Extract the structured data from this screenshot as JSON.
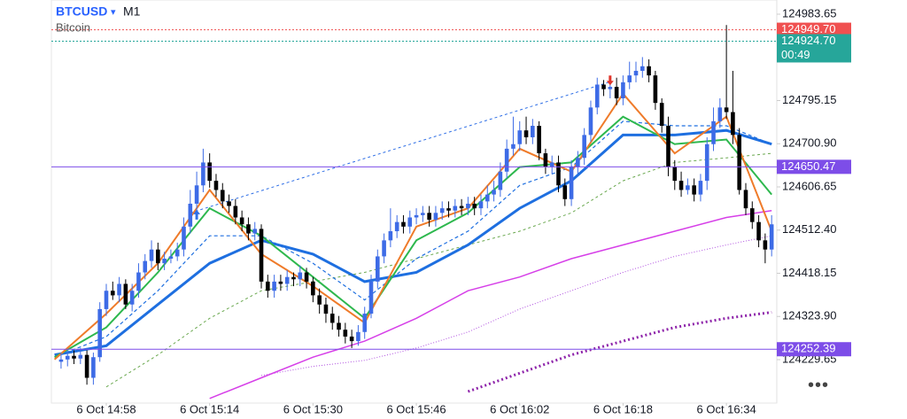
{
  "chart_data": {
    "type": "candlestick",
    "symbol": "BTCUSD",
    "timeframe": "M1",
    "description": "Bitcoin",
    "up_color": "#3d6be6",
    "down_color": "#000000",
    "xlim": [
      -8.5,
      103.8
    ],
    "ylim": [
      124134.9,
      125014.6
    ],
    "xticks": [
      {
        "value": 0,
        "label": "6 Oct 14:58"
      },
      {
        "value": 16,
        "label": "6 Oct 15:14"
      },
      {
        "value": 32,
        "label": "6 Oct 15:30"
      },
      {
        "value": 48,
        "label": "6 Oct 15:46"
      },
      {
        "value": 64,
        "label": "6 Oct 16:02"
      },
      {
        "value": 80,
        "label": "6 Oct 16:18"
      },
      {
        "value": 96,
        "label": "6 Oct 16:34"
      }
    ],
    "yticks": [
      124983.65,
      124795.15,
      {
        "value": 124700.9,
        "label": "124700.90"
      },
      124606.65,
      {
        "value": 124512.4,
        "label": "124512.40"
      },
      124418.15,
      {
        "value": 124323.9,
        "label": "124323.90"
      },
      124229.65
    ],
    "candles": {
      "x": [
        -7,
        -6,
        -5,
        -4,
        -3,
        -2,
        -1,
        0,
        1,
        2,
        3,
        4,
        5,
        6,
        7,
        8,
        9,
        10,
        11,
        12,
        13,
        14,
        15,
        16,
        17,
        18,
        19,
        20,
        21,
        22,
        23,
        24,
        25,
        26,
        27,
        28,
        29,
        30,
        31,
        32,
        33,
        34,
        35,
        36,
        37,
        38,
        39,
        40,
        41,
        42,
        43,
        44,
        45,
        46,
        47,
        48,
        49,
        50,
        51,
        52,
        53,
        54,
        55,
        56,
        57,
        58,
        59,
        60,
        61,
        62,
        63,
        64,
        65,
        66,
        67,
        68,
        69,
        70,
        71,
        72,
        73,
        74,
        75,
        76,
        77,
        78,
        79,
        80,
        81,
        82,
        83,
        84,
        85,
        86,
        87,
        88,
        89,
        90,
        91,
        92,
        93,
        94,
        95,
        96,
        97,
        98,
        99,
        100,
        101,
        102,
        103
      ],
      "open": [
        124225,
        124230,
        124238,
        124232,
        124240,
        124190,
        124235,
        124340,
        124380,
        124370,
        124395,
        124350,
        124380,
        124420,
        124445,
        124470,
        124440,
        124450,
        124455,
        124470,
        124520,
        124570,
        124610,
        124660,
        124620,
        124600,
        124575,
        124565,
        124540,
        124525,
        124505,
        124515,
        124400,
        124380,
        124400,
        124395,
        124410,
        124405,
        124420,
        124400,
        124370,
        124350,
        124330,
        124310,
        124295,
        124280,
        124270,
        124290,
        124330,
        124400,
        124455,
        124490,
        124510,
        124530,
        124520,
        124540,
        124545,
        124550,
        124535,
        124550,
        124560,
        124555,
        124565,
        124560,
        124570,
        124560,
        124575,
        124590,
        124600,
        124640,
        124690,
        124700,
        124730,
        124715,
        124740,
        124680,
        124650,
        124660,
        124610,
        124580,
        124650,
        124670,
        124720,
        124780,
        124830,
        124820,
        124825,
        124800,
        124835,
        124850,
        124860,
        124870,
        124850,
        124790,
        124740,
        124650,
        124620,
        124600,
        124610,
        124590,
        124620,
        124700,
        124750,
        124780,
        124770,
        124720,
        124600,
        124560,
        124530,
        124490,
        124470
      ],
      "high": [
        124245,
        124250,
        124250,
        124255,
        124250,
        124245,
        124355,
        124395,
        124400,
        124410,
        124405,
        124395,
        124440,
        124460,
        124490,
        124485,
        124465,
        124470,
        124485,
        124540,
        124600,
        124640,
        124690,
        124680,
        124635,
        124615,
        124590,
        124580,
        124555,
        124540,
        124530,
        124525,
        124415,
        124415,
        124415,
        124425,
        124420,
        124435,
        124430,
        124410,
        124385,
        124365,
        124345,
        124325,
        124310,
        124295,
        124305,
        124345,
        124415,
        124470,
        124505,
        124560,
        124545,
        124545,
        124555,
        124560,
        124565,
        124565,
        124565,
        124575,
        124575,
        124580,
        124580,
        124585,
        124585,
        124590,
        124610,
        124620,
        124660,
        124710,
        124760,
        124750,
        124760,
        124755,
        124750,
        124690,
        124675,
        124675,
        124625,
        124665,
        124685,
        124735,
        124795,
        124845,
        124840,
        124840,
        124845,
        124850,
        124880,
        124880,
        124890,
        124885,
        124860,
        124800,
        124760,
        124665,
        124640,
        124625,
        124625,
        124635,
        124715,
        124780,
        124800,
        124960,
        124860,
        124735,
        124615,
        124575,
        124545,
        124505,
        124545
      ],
      "low": [
        124210,
        124215,
        124220,
        124220,
        124175,
        124175,
        124225,
        124325,
        124360,
        124355,
        124340,
        124335,
        124365,
        124405,
        124430,
        124425,
        124425,
        124440,
        124445,
        124455,
        124505,
        124555,
        124595,
        124605,
        124585,
        124560,
        124550,
        124525,
        124510,
        124490,
        124490,
        124385,
        124365,
        124365,
        124380,
        124380,
        124390,
        124390,
        124385,
        124355,
        124330,
        124310,
        124295,
        124280,
        124265,
        124255,
        124260,
        124275,
        124320,
        124385,
        124440,
        124475,
        124495,
        124505,
        124505,
        124525,
        124530,
        124520,
        124520,
        124535,
        124540,
        124540,
        124545,
        124545,
        124545,
        124545,
        124560,
        124575,
        124585,
        124625,
        124675,
        124685,
        124700,
        124700,
        124665,
        124635,
        124635,
        124595,
        124565,
        124565,
        124635,
        124655,
        124705,
        124765,
        124805,
        124800,
        124785,
        124785,
        124820,
        124835,
        124845,
        124835,
        124775,
        124725,
        124630,
        124600,
        124585,
        124590,
        124575,
        124575,
        124600,
        124685,
        124735,
        124755,
        124700,
        124590,
        124545,
        124515,
        124475,
        124440,
        124455
      ],
      "close": [
        124230,
        124238,
        124232,
        124240,
        124190,
        124235,
        124340,
        124380,
        124370,
        124395,
        124350,
        124380,
        124420,
        124445,
        124470,
        124440,
        124450,
        124455,
        124470,
        124520,
        124570,
        124610,
        124660,
        124620,
        124600,
        124575,
        124565,
        124540,
        124525,
        124505,
        124515,
        124400,
        124380,
        124400,
        124395,
        124410,
        124405,
        124420,
        124400,
        124370,
        124350,
        124330,
        124310,
        124295,
        124280,
        124270,
        124290,
        124330,
        124400,
        124455,
        124490,
        124510,
        124530,
        124520,
        124540,
        124545,
        124550,
        124535,
        124550,
        124560,
        124555,
        124565,
        124560,
        124570,
        124560,
        124575,
        124590,
        124600,
        124640,
        124690,
        124700,
        124730,
        124715,
        124740,
        124680,
        124650,
        124660,
        124610,
        124580,
        124650,
        124670,
        124720,
        124780,
        124830,
        124820,
        124825,
        124800,
        124835,
        124850,
        124860,
        124870,
        124850,
        124790,
        124740,
        124650,
        124620,
        124600,
        124610,
        124590,
        124620,
        124700,
        124750,
        124780,
        124770,
        124720,
        124600,
        124560,
        124530,
        124490,
        124470,
        124525
      ]
    },
    "line_x": [
      -8,
      0,
      8,
      16,
      24,
      32,
      40,
      48,
      56,
      64,
      72,
      80,
      88,
      96,
      103
    ],
    "lines": [
      {
        "color": "#8e24aa",
        "width": 3,
        "dash": "2 3",
        "values": [
          null,
          null,
          null,
          null,
          null,
          null,
          null,
          null,
          124160,
          124200,
          124240,
          124270,
          124300,
          124320,
          124333
        ]
      },
      {
        "color": "#b04fe0",
        "width": 1,
        "dash": "1 2",
        "values": [
          null,
          null,
          null,
          null,
          124195,
          124215,
          124228,
          124255,
          124290,
          124340,
          124380,
          124420,
          124455,
          124480,
          124500
        ]
      },
      {
        "color": "#d63fe8",
        "width": 1.5,
        "dash": "",
        "values": [
          null,
          null,
          null,
          124145,
          124190,
          124235,
          124270,
          124320,
          124380,
          124410,
          124450,
          124480,
          124510,
          124540,
          124555
        ]
      },
      {
        "color": "#6aa84f",
        "width": 1,
        "dash": "3 3",
        "values": [
          null,
          124170,
          124240,
          124320,
          124380,
          124400,
          124420,
          124450,
          124480,
          124510,
          124550,
          124620,
          124660,
          124670,
          124680
        ]
      },
      {
        "color": "#1e6fe0",
        "width": 1.2,
        "dash": "4 3",
        "values": [
          124235,
          124280,
          124380,
          124500,
          124500,
          124440,
          124360,
          124450,
          124510,
          124610,
          124650,
          124750,
          124740,
          124740,
          124700
        ]
      },
      {
        "color": "#1e6fe0",
        "width": 3,
        "dash": "",
        "values": [
          124240,
          124260,
          124350,
          124440,
          124490,
          124460,
          124400,
          124420,
          124480,
          124560,
          124620,
          124720,
          124720,
          124730,
          124700
        ]
      },
      {
        "color": "#2eb84e",
        "width": 2,
        "dash": "",
        "values": [
          124235,
          124300,
          124420,
          124560,
          124500,
          124410,
          124320,
          124490,
          124550,
          124650,
          124660,
          124760,
          124700,
          124710,
          124590
        ]
      },
      {
        "color": "#ef7b2a",
        "width": 2,
        "dash": "",
        "values": [
          124230,
          124330,
          124440,
          124600,
          124460,
          124390,
          124310,
          124520,
          124560,
          124690,
          124640,
          124810,
          124680,
          124760,
          124510
        ]
      }
    ],
    "trendline": {
      "color": "#2f6fe6",
      "x": [
        13,
        78
      ],
      "values": [
        124550,
        124836
      ]
    },
    "signals": [
      {
        "x": 14,
        "value": 124545,
        "direction": "up",
        "color": "#2f6fe6"
      },
      {
        "x": 78,
        "value": 124840,
        "direction": "down",
        "color": "#e0352b"
      }
    ],
    "price_lines": [
      {
        "value": 124949.7,
        "label": "124949.70",
        "color": "#f05050",
        "style": "dotted"
      },
      {
        "value": 124924.7,
        "label": "124924.70",
        "color": "#26a69a",
        "style": "dotted",
        "countdown": "00:49"
      },
      {
        "value": 124650.47,
        "color": "#7d4de8",
        "style": "solid"
      },
      {
        "value": 124252.39,
        "color": "#7d4de8",
        "style": "solid"
      }
    ]
  }
}
